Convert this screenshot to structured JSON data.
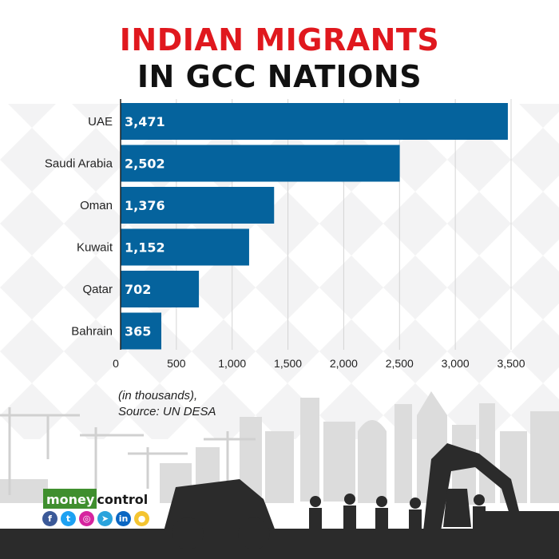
{
  "title": {
    "line1": "INDIAN MIGRANTS",
    "line2": "IN GCC NATIONS"
  },
  "chart_data": {
    "type": "bar",
    "orientation": "horizontal",
    "categories": [
      "UAE",
      "Saudi Arabia",
      "Oman",
      "Kuwait",
      "Qatar",
      "Bahrain"
    ],
    "values": [
      3471,
      2502,
      1376,
      1152,
      702,
      365
    ],
    "value_labels": [
      "3,471",
      "2,502",
      "1,376",
      "1,152",
      "702",
      "365"
    ],
    "xlim": [
      0,
      3500
    ],
    "x_ticks": [
      0,
      500,
      1000,
      1500,
      2000,
      2500,
      3000,
      3500
    ],
    "x_tick_labels": [
      "0",
      "500",
      "1,000",
      "1,500",
      "2,000",
      "2,500",
      "3,000",
      "3,500"
    ],
    "grid": true,
    "bar_color": "#05639d"
  },
  "note": {
    "line1": "(in thousands),",
    "line2": "Source: UN DESA"
  },
  "brand": {
    "logo_part1": "money",
    "logo_part2": "control",
    "logo_color": "#3f8f2e",
    "social_icons": [
      "facebook-icon",
      "twitter-icon",
      "instagram-icon",
      "telegram-icon",
      "linkedin-icon",
      "koo-icon"
    ]
  },
  "colors": {
    "title_accent": "#e0181e",
    "title_dark": "#111111"
  }
}
